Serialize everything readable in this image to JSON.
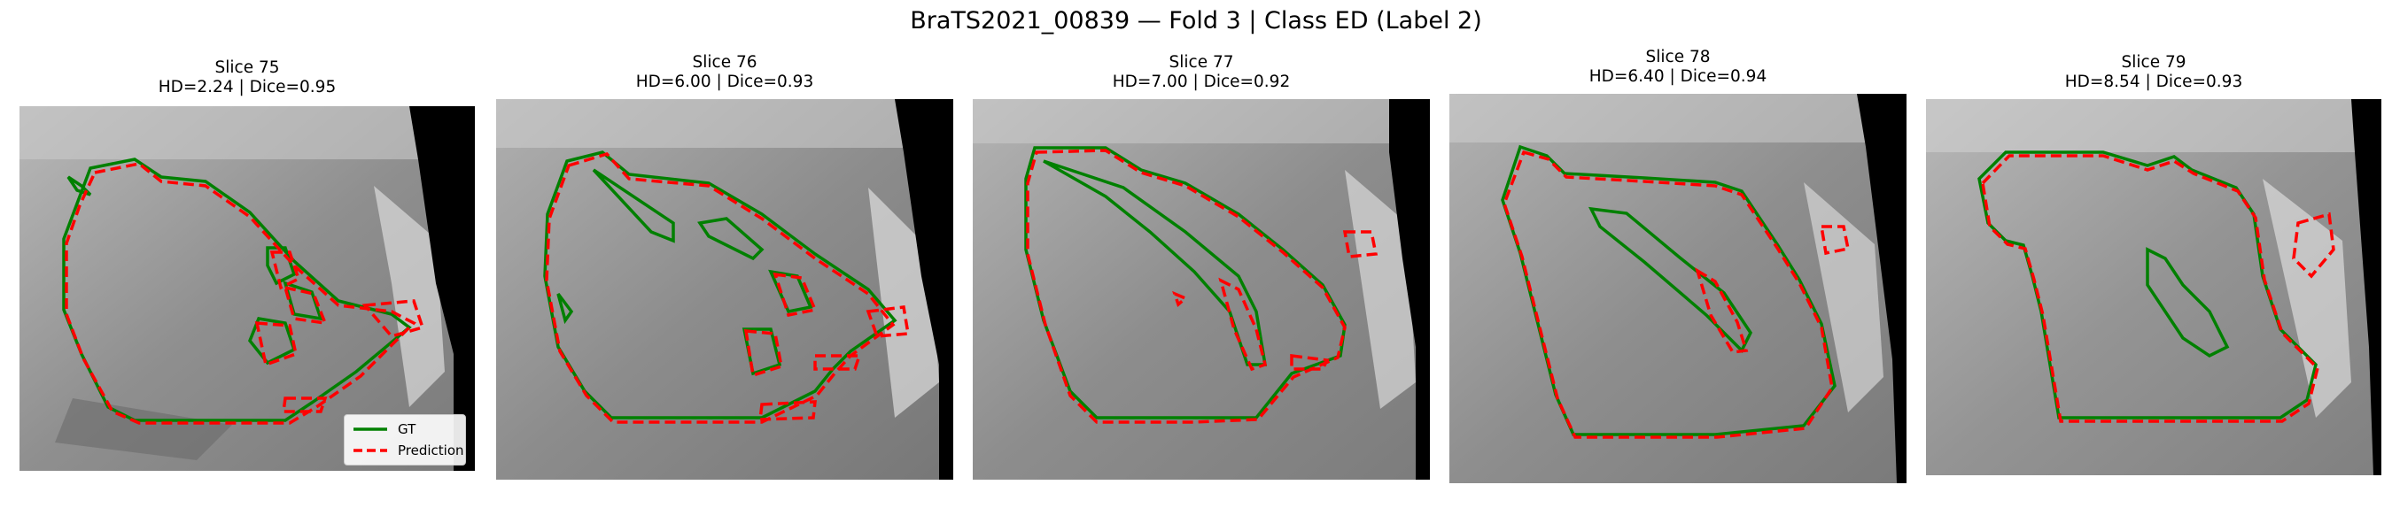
{
  "figure": {
    "title": "BraTS2021_00839 — Fold 3 | Class ED (Label 2)"
  },
  "panels": [
    {
      "slice": "Slice 75",
      "metrics": "HD=2.24 | Dice=0.95",
      "hd": 2.24,
      "dice": 0.95
    },
    {
      "slice": "Slice 76",
      "metrics": "HD=6.00 | Dice=0.93",
      "hd": 6.0,
      "dice": 0.93
    },
    {
      "slice": "Slice 77",
      "metrics": "HD=7.00 | Dice=0.92",
      "hd": 7.0,
      "dice": 0.92
    },
    {
      "slice": "Slice 78",
      "metrics": "HD=6.40 | Dice=0.94",
      "hd": 6.4,
      "dice": 0.94
    },
    {
      "slice": "Slice 79",
      "metrics": "HD=8.54 | Dice=0.93",
      "hd": 8.54,
      "dice": 0.93
    }
  ],
  "legend": {
    "gt_label": "GT",
    "pred_label": "Prediction"
  },
  "colors": {
    "gt": "#008000",
    "prediction": "#ff0000",
    "background": "#ffffff",
    "mri_dark": "#000000"
  }
}
